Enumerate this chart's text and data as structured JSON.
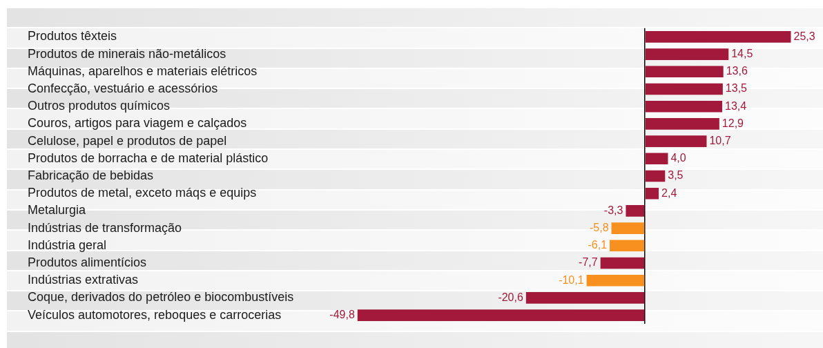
{
  "chart_data": {
    "type": "bar",
    "orientation": "horizontal",
    "categories": [
      "Produtos têxteis",
      "Produtos de minerais não-metálicos",
      "Máquinas, aparelhos e materiais elétricos",
      "Confecção, vestuário e acessórios",
      "Outros produtos químicos",
      "Couros, artigos para viagem e calçados",
      "Celulose, papel e produtos de papel",
      "Produtos de borracha e de material plástico",
      "Fabricação de bebidas",
      "Produtos de metal, exceto máqs e equips",
      "Metalurgia",
      "Indústrias de transformação",
      "Indústria geral",
      "Produtos alimentícios",
      "Indústrias extrativas",
      "Coque, derivados do petróleo e biocombustíveis",
      "Veículos automotores, reboques e carrocerias"
    ],
    "values": [
      25.3,
      14.5,
      13.6,
      13.5,
      13.4,
      12.9,
      10.7,
      4.0,
      3.5,
      2.4,
      -3.3,
      -5.8,
      -6.1,
      -7.7,
      -10.1,
      -20.6,
      -49.8
    ],
    "colors": [
      "#a3193b",
      "#a3193b",
      "#a3193b",
      "#a3193b",
      "#a3193b",
      "#a3193b",
      "#a3193b",
      "#a3193b",
      "#a3193b",
      "#a3193b",
      "#a3193b",
      "#f7901e",
      "#f7901e",
      "#a3193b",
      "#f7901e",
      "#a3193b",
      "#a3193b"
    ],
    "value_labels": [
      "25,3",
      "14,5",
      "13,6",
      "13,5",
      "13,4",
      "12,9",
      "10,7",
      "4,0",
      "3,5",
      "2,4",
      "-3,3",
      "-5,8",
      "-6,1",
      "-7,7",
      "-10,1",
      "-20,6",
      "-49,8"
    ],
    "grid": false,
    "legend": false
  }
}
